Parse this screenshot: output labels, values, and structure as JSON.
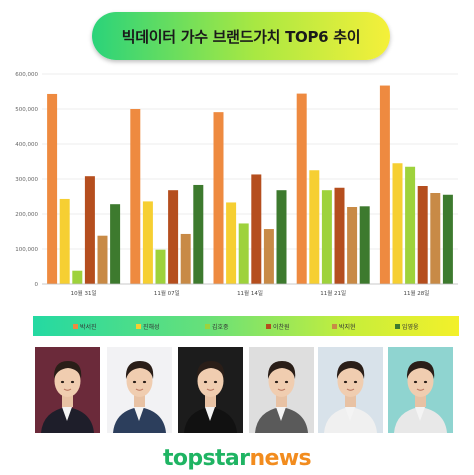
{
  "header": {
    "title": "빅데이터 가수 브랜드가치 TOP6 추이"
  },
  "chart_data": {
    "type": "bar",
    "categories": [
      "10월 31일",
      "11월 07일",
      "11월 14일",
      "11월 21일",
      "11월 28일"
    ],
    "series": [
      {
        "name": "박서진",
        "color": "#ee8a40",
        "values": [
          543000,
          500000,
          491000,
          544000,
          567000
        ]
      },
      {
        "name": "진해성",
        "color": "#f6cf32",
        "values": [
          243000,
          236000,
          233000,
          325000,
          345000
        ]
      },
      {
        "name": "김호중",
        "color": "#9ed23c",
        "values": [
          38000,
          98000,
          173000,
          268000,
          335000
        ]
      },
      {
        "name": "이찬원",
        "color": "#b54e1e",
        "values": [
          308000,
          268000,
          313000,
          275000,
          280000
        ]
      },
      {
        "name": "박지현",
        "color": "#c88a46",
        "values": [
          138000,
          143000,
          157000,
          220000,
          260000
        ]
      },
      {
        "name": "임영웅",
        "color": "#3d7a2e",
        "values": [
          228000,
          283000,
          268000,
          222000,
          255000
        ]
      }
    ],
    "yticks": [
      "0",
      "100,000",
      "200,000",
      "300,000",
      "400,000",
      "500,000",
      "600,000"
    ],
    "ylim": [
      0,
      600000
    ],
    "grid": true,
    "legend": "bottom"
  },
  "legend": [
    {
      "label": "박서진",
      "color": "#ee8a40"
    },
    {
      "label": "진해성",
      "color": "#f6cf32"
    },
    {
      "label": "김호중",
      "color": "#9ed23c"
    },
    {
      "label": "이찬원",
      "color": "#b54e1e"
    },
    {
      "label": "박지현",
      "color": "#c88a46"
    },
    {
      "label": "임영웅",
      "color": "#3d7a2e"
    }
  ],
  "photos": [
    {
      "name": "portrait-1",
      "bg": "#6b2a3a",
      "suit": "#1e1e2a"
    },
    {
      "name": "portrait-2",
      "bg": "#f2f2f4",
      "suit": "#2c3e5c"
    },
    {
      "name": "portrait-3",
      "bg": "#1c1c1c",
      "suit": "#111111"
    },
    {
      "name": "portrait-4",
      "bg": "#dedede",
      "suit": "#5a5a5a"
    },
    {
      "name": "portrait-5",
      "bg": "#d8e2ea",
      "suit": "#f0f0f0"
    },
    {
      "name": "portrait-6",
      "bg": "#8fd4d0",
      "suit": "#e8e8e8"
    }
  ],
  "footer": {
    "logo_part1": "topstar",
    "logo_part2": "news"
  }
}
